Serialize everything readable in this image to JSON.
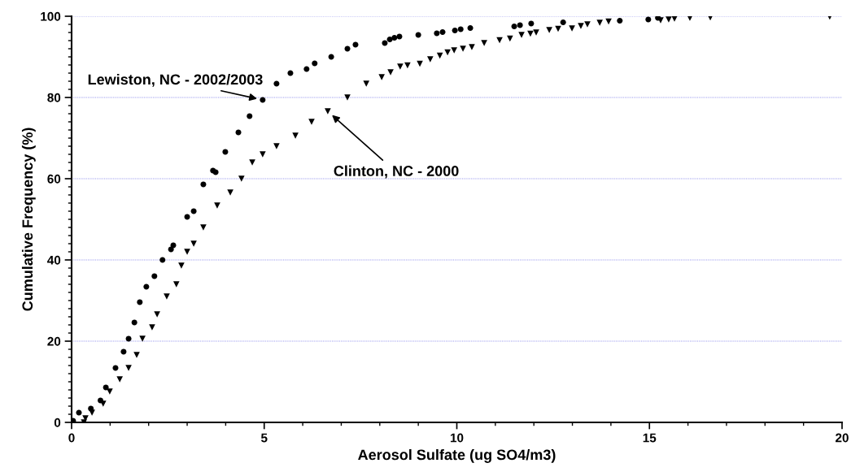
{
  "chart_data": {
    "type": "scatter",
    "xlabel": "Aerosol Sulfate (ug SO4/m3)",
    "ylabel": "Cumulative Frequency (%)",
    "xlim": [
      0,
      20
    ],
    "ylim": [
      0,
      100
    ],
    "xticks": [
      0,
      5,
      10,
      15,
      20
    ],
    "yticks": [
      0,
      20,
      40,
      60,
      80,
      100
    ],
    "grid": "y",
    "legend": false,
    "series": [
      {
        "color": "#000000",
        "marker": "circle",
        "x": [
          0.04,
          0.19,
          0.5,
          0.75,
          0.89,
          1.14,
          1.35,
          1.48,
          1.63,
          1.77,
          1.94,
          2.15,
          2.36,
          2.58,
          2.64,
          3.0,
          3.17,
          3.42,
          3.67,
          3.74,
          3.99,
          4.33,
          4.62,
          4.96,
          5.32,
          5.68,
          6.1,
          6.31,
          6.74,
          7.16,
          7.37,
          8.13,
          8.26,
          8.38,
          8.51,
          9.0,
          9.48,
          9.63,
          9.95,
          10.1,
          10.35,
          11.49,
          11.64,
          11.93,
          12.76,
          14.23,
          14.97,
          15.22
        ],
        "values": [
          0.4,
          2.4,
          3.4,
          5.4,
          8.6,
          13.4,
          17.4,
          20.6,
          24.6,
          29.6,
          33.4,
          36,
          40,
          42.6,
          43.6,
          50.6,
          52,
          58.6,
          62,
          61.6,
          66.6,
          71.4,
          75.4,
          79.4,
          83.4,
          86,
          87,
          88.4,
          90,
          92,
          93,
          93.4,
          94.3,
          94.7,
          95,
          95.4,
          95.8,
          96.1,
          96.5,
          96.8,
          97.1,
          97.5,
          97.8,
          98.2,
          98.5,
          98.9,
          99.2,
          99.6
        ]
      },
      {
        "color": "#000000",
        "marker": "triangle",
        "x": [
          0.32,
          0.36,
          0.53,
          0.82,
          0.99,
          1.25,
          1.48,
          1.69,
          1.84,
          2.09,
          2.22,
          2.47,
          2.72,
          2.85,
          3.0,
          3.17,
          3.42,
          3.78,
          4.12,
          4.41,
          4.69,
          4.96,
          5.32,
          5.81,
          6.23,
          6.65,
          7.16,
          7.65,
          8.05,
          8.28,
          8.53,
          8.72,
          9.04,
          9.31,
          9.56,
          9.76,
          9.93,
          10.16,
          10.39,
          10.71,
          11.11,
          11.38,
          11.68,
          11.91,
          12.06,
          12.4,
          12.63,
          12.99,
          13.22,
          13.39,
          13.71,
          13.94,
          15.29,
          15.5,
          15.65,
          16.05,
          16.58,
          19.68
        ],
        "values": [
          0,
          1,
          2.4,
          4.6,
          7.6,
          10.6,
          13.4,
          16.6,
          20.6,
          23.4,
          26.6,
          31,
          34,
          38.6,
          42,
          44,
          48,
          53.4,
          56.6,
          60,
          64,
          66,
          68,
          70.6,
          74,
          76.6,
          80,
          83.4,
          85,
          86.2,
          87.6,
          87.9,
          88.3,
          89.4,
          90.3,
          91.1,
          91.6,
          92,
          92.4,
          93.4,
          94.1,
          94.5,
          95.4,
          95.7,
          96,
          96.6,
          96.9,
          97,
          97.6,
          98,
          98.4,
          98.7,
          99,
          99.2,
          99.4,
          99.6,
          99.7,
          99.9
        ]
      }
    ],
    "annotations": [
      {
        "text": "Lewiston, NC - 2002/2003",
        "x": 4.96,
        "y": 79.4
      },
      {
        "text": "Clinton, NC - 2000",
        "x": 6.65,
        "y": 76.6
      }
    ]
  }
}
